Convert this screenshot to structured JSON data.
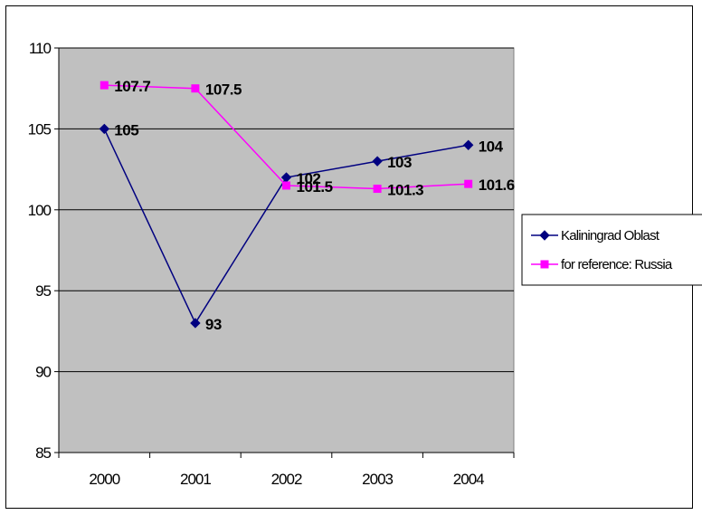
{
  "chart_data": {
    "type": "line",
    "title": "",
    "xlabel": "",
    "ylabel": "",
    "categories": [
      "2000",
      "2001",
      "2002",
      "2003",
      "2004"
    ],
    "ylim": [
      85,
      110
    ],
    "yticks": [
      85,
      90,
      95,
      100,
      105,
      110
    ],
    "grid": true,
    "plot_background": "#c0c0c0",
    "legend_position": "right",
    "series": [
      {
        "name": "Kaliningrad Oblast",
        "values": [
          105,
          93,
          102,
          103,
          104
        ],
        "color": "#000080",
        "marker": "diamond",
        "labels": [
          "105",
          "93",
          "102",
          "103",
          "104"
        ]
      },
      {
        "name": "for reference: Russia",
        "values": [
          107.7,
          107.5,
          101.5,
          101.3,
          101.6
        ],
        "color": "#ff00ff",
        "marker": "square",
        "labels": [
          "107.7",
          "107.5",
          "101.5",
          "101.3",
          "101.6"
        ]
      }
    ]
  }
}
